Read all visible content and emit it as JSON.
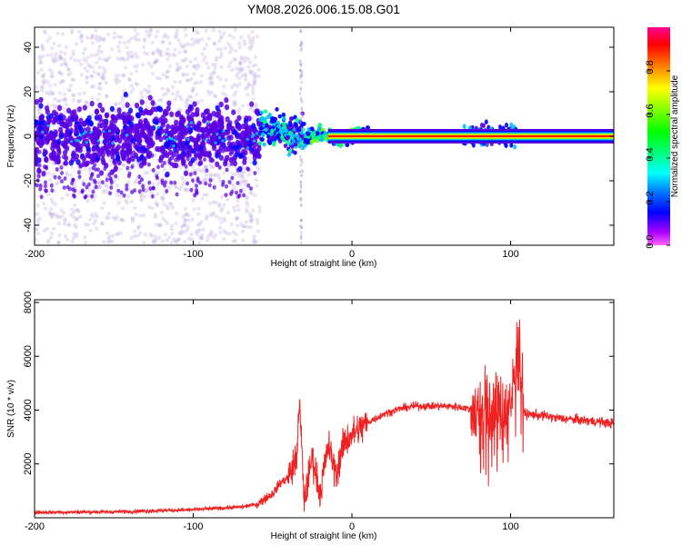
{
  "figure": {
    "title": "YM08.2026.006.15.08.G01"
  },
  "chart_data": [
    {
      "type": "heatmap",
      "title": "YM08.2026.006.15.08.G01",
      "xlabel": "Height of straight line (km)",
      "ylabel": "Frequency (Hz)",
      "xlim": [
        -200,
        165
      ],
      "ylim": [
        -49,
        49
      ],
      "xticks": [
        -200,
        -100,
        0,
        100
      ],
      "yticks": [
        -40,
        -20,
        0,
        20,
        40
      ],
      "grid": false,
      "colorbar": {
        "label": "Normalized spectral amplitude",
        "range": [
          0.0,
          1.0
        ],
        "ticks": [
          0.0,
          0.2,
          0.4,
          0.6,
          0.8
        ],
        "tick_labels": [
          "0.0",
          "0.2",
          "0.4",
          "0.6",
          "0.8"
        ],
        "colormap": [
          "#b39ddb",
          "#5a00e0",
          "#0000ff",
          "#00c0ff",
          "#00ff80",
          "#80ff00",
          "#ffff00",
          "#ff8000",
          "#ff0000",
          "#ff0090"
        ]
      },
      "carrier": {
        "frequency_hz": 0,
        "x_start_km": 10,
        "x_end_km": 165,
        "amplitude": 0.92
      },
      "regions": [
        {
          "x_range": [
            -200,
            -58
          ],
          "spread_hz": 48,
          "core_spread_hz": 12,
          "amplitude": "noise"
        },
        {
          "x_range": [
            -58,
            -30
          ],
          "center_offset_hz": 4,
          "spread_hz": 8,
          "amplitude": "rising"
        },
        {
          "x_range": [
            -30,
            10
          ],
          "spread_hz": 3,
          "amplitude": "strong"
        },
        {
          "x_range": [
            70,
            105
          ],
          "spread_hz": 4,
          "amplitude": "scintillation"
        }
      ]
    },
    {
      "type": "line",
      "xlabel": "Height of straight line (km)",
      "ylabel": "SNR (10 * v/v)",
      "xlim": [
        -200,
        165
      ],
      "ylim": [
        0,
        8100
      ],
      "xticks": [
        -200,
        -100,
        0,
        100
      ],
      "yticks": [
        2000,
        4000,
        6000,
        8000
      ],
      "grid": false,
      "series": [
        {
          "color": "#ee2222",
          "x": [
            -200,
            -150,
            -100,
            -70,
            -60,
            -50,
            -45,
            -40,
            -35,
            -33,
            -30,
            -25,
            -20,
            -15,
            -10,
            -5,
            0,
            5,
            10,
            15,
            20,
            25,
            30,
            40,
            50,
            60,
            70,
            75,
            80,
            90,
            100,
            105,
            108,
            110,
            120,
            130,
            140,
            150,
            165
          ],
          "y": [
            200,
            220,
            300,
            400,
            500,
            900,
            1300,
            1500,
            2200,
            4200,
            600,
            2300,
            900,
            2700,
            1600,
            2800,
            3100,
            3300,
            3550,
            3700,
            3850,
            3950,
            4050,
            4150,
            4150,
            4150,
            4100,
            4000,
            4100,
            4000,
            4100,
            7000,
            4000,
            3850,
            3800,
            3700,
            3650,
            3600,
            3500
          ]
        }
      ]
    }
  ]
}
